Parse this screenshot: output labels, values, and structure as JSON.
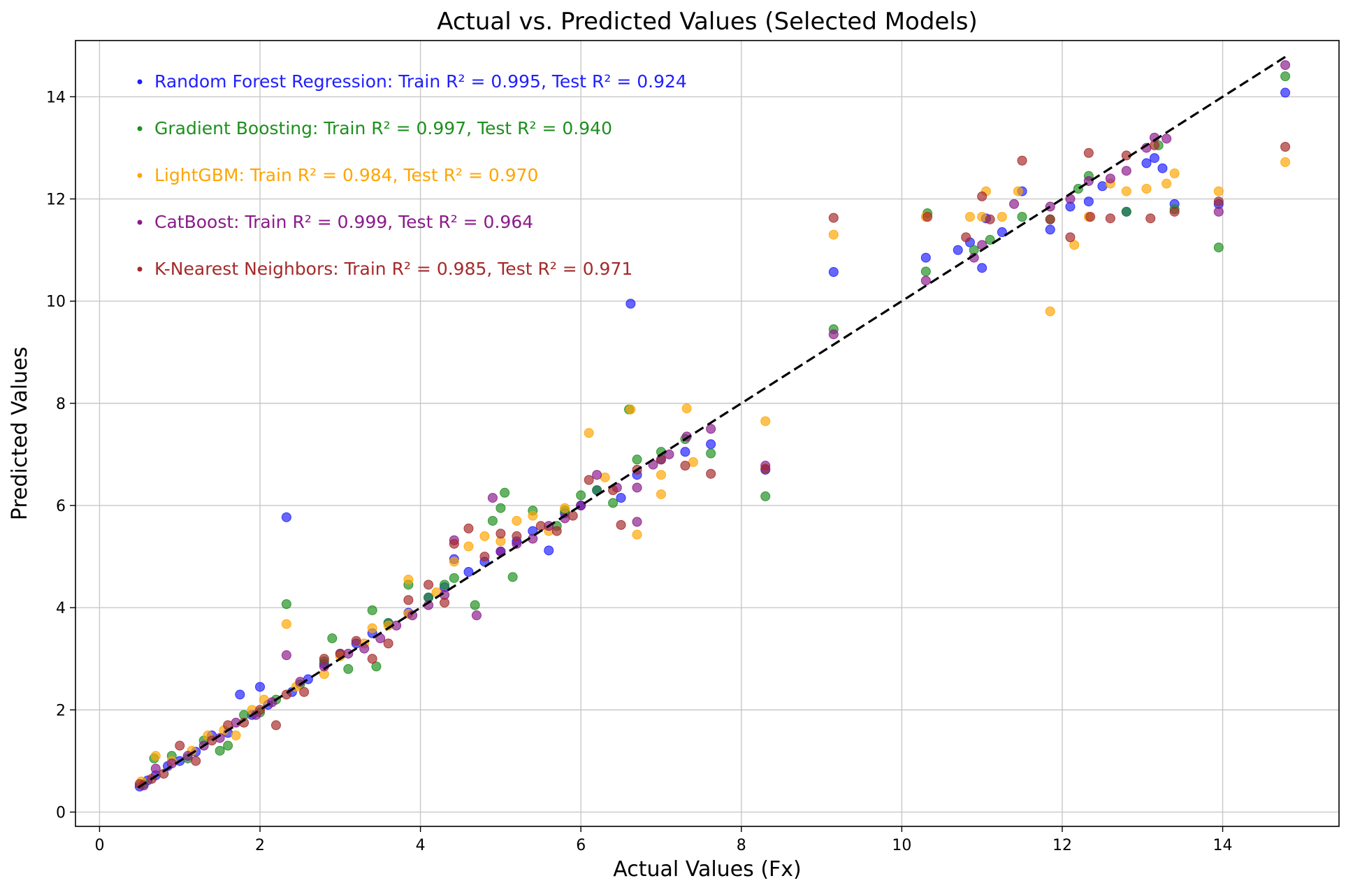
{
  "chart_data": {
    "type": "scatter",
    "title": "Actual vs. Predicted Values (Selected Models)",
    "xlabel": "Actual Values (Fx)",
    "ylabel": "Predicted Values",
    "xlim": [
      -0.3,
      15.45
    ],
    "ylim": [
      -0.28,
      15.1
    ],
    "xticks": [
      0,
      2,
      4,
      6,
      8,
      10,
      12,
      14
    ],
    "yticks": [
      0,
      2,
      4,
      6,
      8,
      10,
      12,
      14
    ],
    "grid": true,
    "reference_line": {
      "style": "dashed",
      "color": "#000000",
      "from": [
        0.48,
        0.48
      ],
      "to": [
        14.78,
        14.78
      ]
    },
    "legend_position": "top-left",
    "series": [
      {
        "name": "Random Forest Regression",
        "label": "Random Forest Regression: Train R² = 0.995, Test R² = 0.924",
        "color": "#1f1fff",
        "points": [
          [
            0.5,
            0.5
          ],
          [
            0.6,
            0.62
          ],
          [
            0.7,
            0.72
          ],
          [
            0.85,
            0.9
          ],
          [
            1.0,
            1.0
          ],
          [
            1.2,
            1.18
          ],
          [
            1.4,
            1.5
          ],
          [
            1.6,
            1.55
          ],
          [
            1.75,
            2.3
          ],
          [
            1.9,
            1.9
          ],
          [
            2.0,
            2.45
          ],
          [
            2.1,
            2.1
          ],
          [
            2.33,
            5.77
          ],
          [
            2.4,
            2.35
          ],
          [
            2.6,
            2.6
          ],
          [
            2.8,
            2.9
          ],
          [
            3.0,
            3.1
          ],
          [
            3.2,
            3.3
          ],
          [
            3.4,
            3.5
          ],
          [
            3.6,
            3.7
          ],
          [
            3.85,
            3.9
          ],
          [
            4.1,
            4.2
          ],
          [
            4.3,
            4.4
          ],
          [
            4.42,
            4.95
          ],
          [
            4.6,
            4.7
          ],
          [
            4.8,
            4.9
          ],
          [
            5.0,
            5.1
          ],
          [
            5.2,
            5.3
          ],
          [
            5.4,
            5.5
          ],
          [
            5.6,
            5.12
          ],
          [
            5.8,
            5.85
          ],
          [
            6.0,
            6.0
          ],
          [
            6.2,
            6.3
          ],
          [
            6.5,
            6.15
          ],
          [
            6.62,
            9.95
          ],
          [
            6.7,
            6.6
          ],
          [
            7.0,
            6.9
          ],
          [
            7.3,
            7.05
          ],
          [
            7.62,
            7.2
          ],
          [
            8.3,
            6.7
          ],
          [
            9.15,
            10.57
          ],
          [
            10.3,
            10.85
          ],
          [
            10.7,
            11.0
          ],
          [
            10.85,
            11.15
          ],
          [
            11.0,
            10.65
          ],
          [
            11.05,
            11.62
          ],
          [
            11.25,
            11.35
          ],
          [
            11.5,
            12.15
          ],
          [
            11.85,
            11.4
          ],
          [
            12.1,
            11.85
          ],
          [
            12.33,
            11.95
          ],
          [
            12.5,
            12.25
          ],
          [
            12.8,
            11.75
          ],
          [
            13.05,
            12.7
          ],
          [
            13.15,
            12.8
          ],
          [
            13.25,
            12.6
          ],
          [
            13.4,
            11.9
          ],
          [
            13.95,
            11.9
          ],
          [
            14.78,
            14.08
          ]
        ]
      },
      {
        "name": "Gradient Boosting",
        "label": "Gradient Boosting: Train R² = 0.997, Test R² = 0.940",
        "color": "#1e8f1e",
        "points": [
          [
            0.55,
            0.55
          ],
          [
            0.68,
            1.05
          ],
          [
            0.9,
            1.1
          ],
          [
            1.1,
            1.05
          ],
          [
            1.3,
            1.4
          ],
          [
            1.5,
            1.2
          ],
          [
            1.6,
            1.3
          ],
          [
            1.8,
            1.9
          ],
          [
            2.0,
            1.95
          ],
          [
            2.2,
            2.2
          ],
          [
            2.33,
            4.07
          ],
          [
            2.5,
            2.5
          ],
          [
            2.8,
            2.95
          ],
          [
            2.9,
            3.4
          ],
          [
            3.1,
            2.8
          ],
          [
            3.4,
            3.95
          ],
          [
            3.45,
            2.85
          ],
          [
            3.6,
            3.7
          ],
          [
            3.85,
            4.45
          ],
          [
            4.1,
            4.2
          ],
          [
            4.3,
            4.45
          ],
          [
            4.42,
            4.58
          ],
          [
            4.68,
            4.05
          ],
          [
            4.9,
            5.7
          ],
          [
            5.0,
            5.95
          ],
          [
            5.05,
            6.25
          ],
          [
            5.15,
            4.6
          ],
          [
            5.4,
            5.9
          ],
          [
            5.7,
            5.6
          ],
          [
            5.8,
            5.9
          ],
          [
            6.0,
            6.2
          ],
          [
            6.2,
            6.3
          ],
          [
            6.4,
            6.05
          ],
          [
            6.6,
            7.88
          ],
          [
            6.7,
            6.9
          ],
          [
            7.0,
            7.05
          ],
          [
            7.3,
            7.3
          ],
          [
            7.62,
            7.02
          ],
          [
            8.3,
            6.18
          ],
          [
            9.15,
            9.45
          ],
          [
            10.3,
            10.58
          ],
          [
            10.32,
            11.72
          ],
          [
            10.9,
            11.0
          ],
          [
            11.1,
            11.2
          ],
          [
            11.5,
            11.65
          ],
          [
            11.85,
            11.6
          ],
          [
            12.2,
            12.2
          ],
          [
            12.33,
            12.45
          ],
          [
            12.8,
            11.75
          ],
          [
            13.2,
            13.05
          ],
          [
            13.4,
            11.8
          ],
          [
            13.95,
            11.05
          ],
          [
            14.78,
            14.4
          ]
        ]
      },
      {
        "name": "LightGBM",
        "label": "LightGBM: Train R² = 0.984, Test R² = 0.970",
        "color": "#ffa500",
        "points": [
          [
            0.52,
            0.6
          ],
          [
            0.7,
            1.1
          ],
          [
            0.9,
            1.0
          ],
          [
            1.15,
            1.2
          ],
          [
            1.35,
            1.5
          ],
          [
            1.55,
            1.6
          ],
          [
            1.7,
            1.5
          ],
          [
            1.9,
            2.0
          ],
          [
            2.05,
            2.2
          ],
          [
            2.33,
            3.68
          ],
          [
            2.45,
            2.45
          ],
          [
            2.8,
            2.7
          ],
          [
            3.0,
            3.05
          ],
          [
            3.3,
            3.3
          ],
          [
            3.4,
            3.6
          ],
          [
            3.6,
            3.65
          ],
          [
            3.85,
            4.55
          ],
          [
            3.85,
            3.88
          ],
          [
            4.2,
            4.3
          ],
          [
            4.42,
            4.9
          ],
          [
            4.6,
            5.2
          ],
          [
            4.8,
            5.4
          ],
          [
            5.0,
            5.3
          ],
          [
            5.2,
            5.7
          ],
          [
            5.4,
            5.8
          ],
          [
            5.6,
            5.5
          ],
          [
            5.8,
            5.95
          ],
          [
            6.1,
            7.42
          ],
          [
            6.3,
            6.55
          ],
          [
            6.62,
            7.88
          ],
          [
            6.7,
            5.43
          ],
          [
            7.0,
            6.6
          ],
          [
            7.0,
            6.22
          ],
          [
            7.32,
            7.9
          ],
          [
            7.4,
            6.85
          ],
          [
            8.3,
            7.65
          ],
          [
            9.15,
            11.3
          ],
          [
            10.3,
            11.65
          ],
          [
            10.85,
            11.65
          ],
          [
            11.0,
            11.65
          ],
          [
            11.05,
            12.15
          ],
          [
            11.25,
            11.65
          ],
          [
            11.45,
            12.15
          ],
          [
            11.85,
            9.8
          ],
          [
            12.15,
            11.1
          ],
          [
            12.33,
            11.65
          ],
          [
            12.6,
            12.3
          ],
          [
            12.8,
            12.15
          ],
          [
            13.05,
            12.2
          ],
          [
            13.3,
            12.3
          ],
          [
            13.4,
            12.5
          ],
          [
            13.95,
            12.15
          ],
          [
            14.78,
            12.72
          ]
        ]
      },
      {
        "name": "CatBoost",
        "label": "CatBoost: Train R² = 0.999, Test R² = 0.964",
        "color": "#8b1a8b",
        "points": [
          [
            0.55,
            0.52
          ],
          [
            0.7,
            0.85
          ],
          [
            0.9,
            0.95
          ],
          [
            1.1,
            1.1
          ],
          [
            1.3,
            1.3
          ],
          [
            1.5,
            1.45
          ],
          [
            1.7,
            1.75
          ],
          [
            1.95,
            1.9
          ],
          [
            2.15,
            2.15
          ],
          [
            2.33,
            3.07
          ],
          [
            2.5,
            2.55
          ],
          [
            2.8,
            2.85
          ],
          [
            3.1,
            3.1
          ],
          [
            3.3,
            3.2
          ],
          [
            3.5,
            3.4
          ],
          [
            3.7,
            3.65
          ],
          [
            3.9,
            3.85
          ],
          [
            4.1,
            4.05
          ],
          [
            4.3,
            4.25
          ],
          [
            4.42,
            5.32
          ],
          [
            4.7,
            3.85
          ],
          [
            4.9,
            6.15
          ],
          [
            5.0,
            5.1
          ],
          [
            5.2,
            5.25
          ],
          [
            5.4,
            5.35
          ],
          [
            5.6,
            5.6
          ],
          [
            5.8,
            5.75
          ],
          [
            6.0,
            6.0
          ],
          [
            6.2,
            6.6
          ],
          [
            6.45,
            6.35
          ],
          [
            6.7,
            5.68
          ],
          [
            6.7,
            6.35
          ],
          [
            6.9,
            6.8
          ],
          [
            7.1,
            7.0
          ],
          [
            7.32,
            7.35
          ],
          [
            7.62,
            7.5
          ],
          [
            8.3,
            6.78
          ],
          [
            9.15,
            9.35
          ],
          [
            10.3,
            10.4
          ],
          [
            10.9,
            10.85
          ],
          [
            11.0,
            11.1
          ],
          [
            11.4,
            11.9
          ],
          [
            11.85,
            11.85
          ],
          [
            12.1,
            12.0
          ],
          [
            12.33,
            12.35
          ],
          [
            12.6,
            12.4
          ],
          [
            12.8,
            12.55
          ],
          [
            13.05,
            13.0
          ],
          [
            13.15,
            13.2
          ],
          [
            13.3,
            13.18
          ],
          [
            13.95,
            11.75
          ],
          [
            14.78,
            14.62
          ]
        ]
      },
      {
        "name": "K-Nearest Neighbors",
        "label": "K-Nearest Neighbors: Train R² = 0.985, Test R² = 0.971",
        "color": "#a52a2a",
        "points": [
          [
            0.5,
            0.55
          ],
          [
            0.65,
            0.65
          ],
          [
            0.8,
            0.75
          ],
          [
            1.0,
            1.3
          ],
          [
            1.2,
            1.0
          ],
          [
            1.4,
            1.4
          ],
          [
            1.6,
            1.7
          ],
          [
            1.8,
            1.75
          ],
          [
            2.0,
            2.0
          ],
          [
            2.2,
            1.7
          ],
          [
            2.33,
            2.3
          ],
          [
            2.55,
            2.35
          ],
          [
            2.8,
            3.0
          ],
          [
            3.0,
            3.1
          ],
          [
            3.2,
            3.35
          ],
          [
            3.4,
            3.0
          ],
          [
            3.6,
            3.3
          ],
          [
            3.85,
            4.15
          ],
          [
            4.1,
            4.45
          ],
          [
            4.3,
            4.1
          ],
          [
            4.42,
            5.25
          ],
          [
            4.6,
            5.55
          ],
          [
            4.8,
            5.0
          ],
          [
            5.0,
            5.45
          ],
          [
            5.2,
            5.4
          ],
          [
            5.5,
            5.6
          ],
          [
            5.7,
            5.5
          ],
          [
            5.9,
            5.8
          ],
          [
            6.1,
            6.5
          ],
          [
            6.4,
            6.3
          ],
          [
            6.5,
            5.62
          ],
          [
            6.7,
            6.7
          ],
          [
            7.0,
            6.9
          ],
          [
            7.3,
            6.78
          ],
          [
            7.62,
            6.62
          ],
          [
            8.3,
            6.72
          ],
          [
            9.15,
            11.63
          ],
          [
            10.32,
            11.65
          ],
          [
            10.8,
            11.25
          ],
          [
            11.0,
            12.05
          ],
          [
            11.1,
            11.6
          ],
          [
            11.5,
            12.75
          ],
          [
            11.85,
            11.6
          ],
          [
            12.1,
            11.25
          ],
          [
            12.33,
            12.9
          ],
          [
            12.35,
            11.65
          ],
          [
            12.6,
            11.62
          ],
          [
            12.8,
            12.85
          ],
          [
            13.1,
            11.62
          ],
          [
            13.15,
            13.05
          ],
          [
            13.4,
            11.75
          ],
          [
            13.95,
            11.95
          ],
          [
            14.78,
            13.02
          ]
        ]
      }
    ]
  }
}
